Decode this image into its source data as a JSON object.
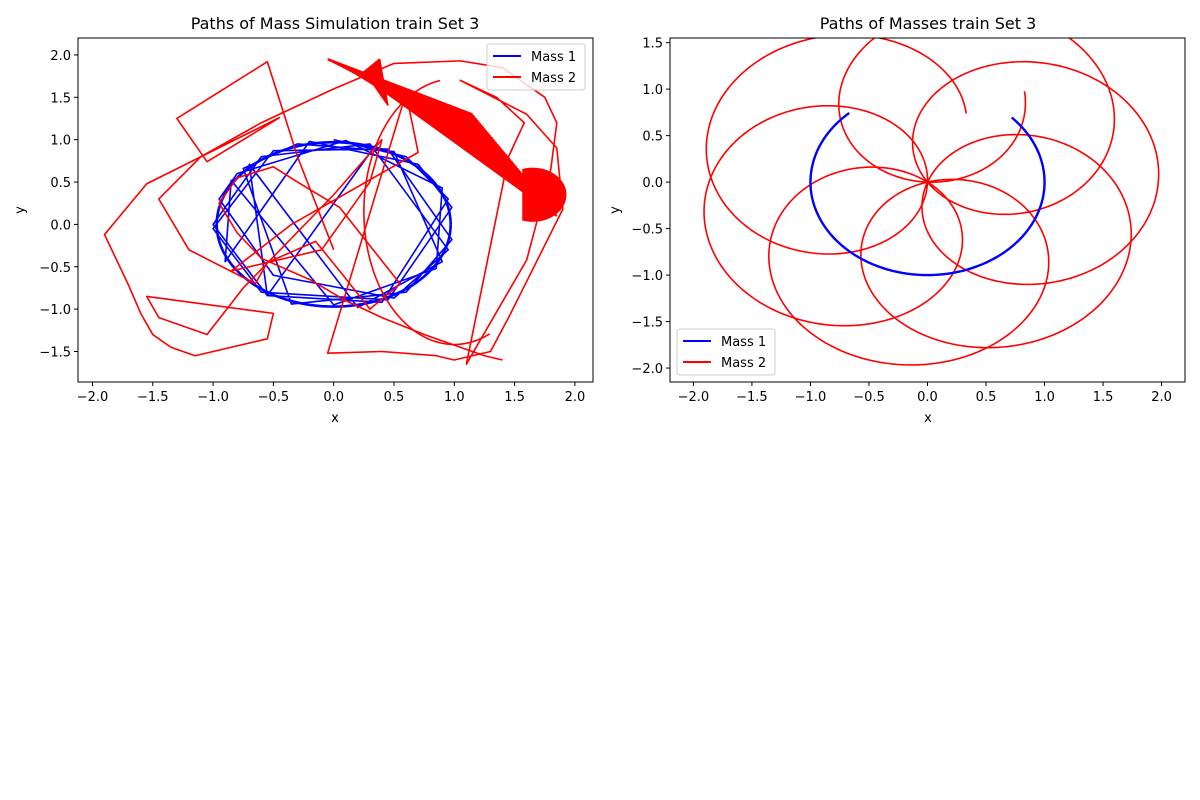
{
  "colors": {
    "mass1": "#0000ff",
    "mass2": "#ff0000",
    "axis": "#000000",
    "legend_edge": "#cccccc"
  },
  "chart_data": [
    {
      "type": "line",
      "title": "Paths of Mass Simulation train Set 3",
      "xlabel": "x",
      "ylabel": "y",
      "xlim": [
        -2.12,
        2.15
      ],
      "ylim": [
        -1.86,
        2.2
      ],
      "xticks": [
        -2.0,
        -1.5,
        -1.0,
        -0.5,
        0.0,
        0.5,
        1.0,
        1.5,
        2.0
      ],
      "yticks": [
        -1.5,
        -1.0,
        -0.5,
        0.0,
        0.5,
        1.0,
        1.5,
        2.0
      ],
      "grid": false,
      "legend": "upper-right",
      "series": [
        {
          "name": "Mass 1",
          "color": "#0000ff",
          "x": [
            0.0,
            0.6,
            0.95,
            0.4,
            -0.55,
            -1.0,
            -0.6,
            0.3,
            0.95,
            0.5,
            -0.5,
            -0.95,
            -0.8,
            0.1,
            0.9,
            0.85,
            0.0,
            -0.85,
            -0.9,
            -0.2,
            0.7,
            0.98,
            0.45,
            -0.6,
            -1.0,
            -0.5,
            0.45,
            0.98,
            0.6,
            -0.35,
            -0.75,
            -0.3,
            0.5,
            0.9,
            0.2,
            -0.7,
            -0.55,
            0.35
          ],
          "y": [
            1.0,
            0.8,
            0.3,
            -0.92,
            -0.84,
            0.0,
            0.8,
            0.95,
            -0.3,
            -0.87,
            -0.6,
            0.3,
            0.6,
            0.99,
            0.43,
            -0.52,
            -0.95,
            0.52,
            -0.44,
            0.98,
            0.71,
            0.2,
            -0.89,
            -0.8,
            -0.05,
            0.87,
            0.89,
            -0.18,
            -0.8,
            -0.94,
            0.66,
            0.95,
            0.86,
            -0.44,
            -0.98,
            0.71,
            -0.84,
            0.94
          ]
        },
        {
          "name": "Mass 2",
          "color": "#ff0000",
          "x": [
            0.0,
            -0.3,
            -0.55,
            -1.3,
            -1.05,
            -0.45,
            -1.55,
            -1.9,
            -1.7,
            -1.6,
            -1.5,
            -1.35,
            -1.15,
            -0.55,
            -0.5,
            -1.55,
            -1.45,
            -1.05,
            -0.75,
            0.0,
            0.4,
            0.3,
            -0.1,
            -0.85,
            -0.35,
            0.7,
            0.6,
            -0.05,
            0.4,
            0.85,
            1.0,
            1.3,
            1.45,
            1.9,
            1.85,
            1.6,
            1.05,
            1.35,
            1.58,
            1.45,
            1.35,
            1.1,
            1.6,
            1.8,
            1.85,
            1.75,
            1.55,
            1.4,
            1.05,
            0.5,
            0.0,
            -0.6,
            -1.1,
            -1.45,
            -1.2,
            -0.65,
            -0.55,
            -0.15,
            0.05,
            0.3,
            0.55,
            0.3,
            0.05,
            -0.3,
            -0.5,
            -0.8,
            -0.95,
            -0.8,
            -0.6,
            -0.2,
            0.1,
            0.4,
            0.75,
            1.05,
            1.25,
            1.4
          ],
          "y": [
            -0.3,
            0.8,
            1.92,
            1.25,
            0.74,
            1.26,
            0.48,
            -0.12,
            -0.72,
            -1.05,
            -1.3,
            -1.45,
            -1.55,
            -1.35,
            -1.05,
            -0.85,
            -1.1,
            -1.3,
            -0.75,
            0.35,
            1.0,
            0.5,
            -0.3,
            -0.55,
            0.0,
            0.85,
            1.55,
            -1.52,
            -1.5,
            -1.55,
            -1.6,
            -1.5,
            -1.1,
            0.18,
            0.9,
            1.3,
            1.7,
            1.5,
            1.2,
            0.8,
            0.1,
            -1.65,
            -0.42,
            0.65,
            1.2,
            1.5,
            1.7,
            1.85,
            1.93,
            1.9,
            1.6,
            1.2,
            0.8,
            0.3,
            -0.3,
            -0.7,
            -0.45,
            -0.2,
            -0.55,
            -1.0,
            -0.7,
            -0.25,
            0.2,
            0.5,
            0.68,
            0.55,
            0.25,
            -0.1,
            -0.4,
            -0.65,
            -0.9,
            -1.1,
            -1.3,
            -1.45,
            -1.55,
            -1.6
          ]
        }
      ]
    },
    {
      "type": "line",
      "title": "Paths of Masses train Set 3",
      "xlabel": "x",
      "ylabel": "y",
      "xlim": [
        -2.2,
        2.2
      ],
      "ylim": [
        -2.15,
        1.55
      ],
      "xticks": [
        -2.0,
        -1.5,
        -1.0,
        -0.5,
        0.0,
        0.5,
        1.0,
        1.5,
        2.0
      ],
      "yticks": [
        -2.0,
        -1.5,
        -1.0,
        -0.5,
        0.0,
        0.5,
        1.0,
        1.5
      ],
      "grid": false,
      "legend": "lower-left",
      "series": [
        {
          "name": "Mass 1",
          "color": "#0000ff",
          "arc_start_deg": 132,
          "arc_end_deg": 404,
          "radius": 1.0
        },
        {
          "name": "Mass 2",
          "color": "#ff0000",
          "rose_samples": 1200,
          "rose_turns": 7
        }
      ]
    }
  ]
}
